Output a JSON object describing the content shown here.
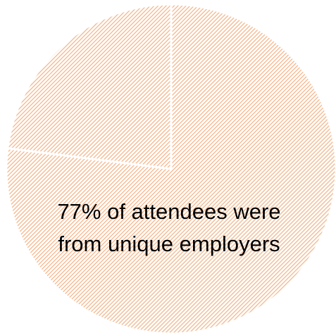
{
  "chart_data": {
    "type": "pie",
    "slices": [
      {
        "value": 77,
        "color": "#F4B183"
      },
      {
        "value": 23,
        "color": "#F4B183"
      }
    ],
    "annotation_lines": [
      "77% of attendees were",
      "from unique employers"
    ],
    "legend": false,
    "hatched": true,
    "stroke_color": "#FFFFFF"
  }
}
